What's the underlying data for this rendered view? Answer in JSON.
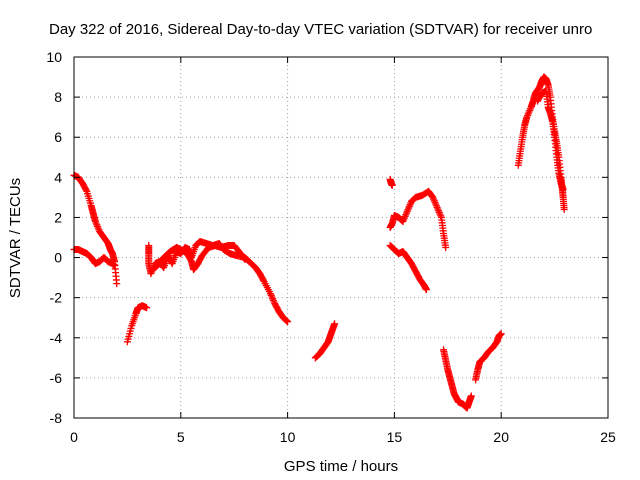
{
  "chart_data": {
    "type": "scatter",
    "title": "Day 322 of 2016, Sidereal Day-to-day VTEC variation (SDTVAR) for receiver unro",
    "xlabel": "GPS time / hours",
    "ylabel": "SDTVAR / TECUs",
    "xlim": [
      0,
      25
    ],
    "ylim": [
      -8,
      10
    ],
    "xticks": [
      0,
      5,
      10,
      15,
      20,
      25
    ],
    "yticks": [
      -8,
      -6,
      -4,
      -2,
      0,
      2,
      4,
      6,
      8,
      10
    ],
    "grid": true,
    "marker": "+",
    "color": "#ff0000",
    "series": [
      {
        "name": "SDTVAR",
        "segments": [
          [
            [
              0.0,
              4.1
            ],
            [
              0.2,
              4.0
            ],
            [
              0.4,
              3.7
            ],
            [
              0.6,
              3.3
            ],
            [
              0.8,
              2.6
            ],
            [
              0.9,
              2.2
            ],
            [
              1.0,
              1.8
            ],
            [
              1.2,
              1.3
            ],
            [
              1.4,
              1.0
            ],
            [
              1.6,
              0.7
            ],
            [
              1.7,
              0.4
            ],
            [
              1.8,
              0.2
            ],
            [
              1.9,
              -0.2
            ],
            [
              2.0,
              -1.3
            ]
          ],
          [
            [
              0.0,
              0.4
            ],
            [
              0.2,
              0.4
            ],
            [
              0.4,
              0.3
            ],
            [
              0.6,
              0.2
            ],
            [
              0.8,
              0.0
            ],
            [
              1.0,
              -0.3
            ],
            [
              1.2,
              -0.2
            ],
            [
              1.4,
              0.0
            ],
            [
              1.6,
              -0.2
            ],
            [
              1.8,
              -0.3
            ],
            [
              1.9,
              -0.4
            ]
          ],
          [
            [
              2.5,
              -4.2
            ],
            [
              2.7,
              -3.4
            ],
            [
              2.9,
              -2.8
            ],
            [
              3.0,
              -2.5
            ],
            [
              3.2,
              -2.4
            ],
            [
              3.4,
              -2.5
            ]
          ],
          [
            [
              3.5,
              0.6
            ],
            [
              3.5,
              0.2
            ],
            [
              3.5,
              -0.3
            ],
            [
              3.6,
              -0.8
            ],
            [
              3.8,
              -0.3
            ],
            [
              4.0,
              -0.2
            ],
            [
              4.2,
              -0.5
            ],
            [
              4.4,
              0.1
            ],
            [
              4.6,
              -0.3
            ],
            [
              4.8,
              0.3
            ],
            [
              5.0,
              0.2
            ],
            [
              5.2,
              0.5
            ],
            [
              5.4,
              0.4
            ],
            [
              5.5,
              0.0
            ],
            [
              5.7,
              0.6
            ],
            [
              5.9,
              0.8
            ],
            [
              6.2,
              0.7
            ],
            [
              6.5,
              0.6
            ],
            [
              6.8,
              0.7
            ],
            [
              7.0,
              0.4
            ],
            [
              7.3,
              0.2
            ],
            [
              7.6,
              0.1
            ],
            [
              8.0,
              0.0
            ],
            [
              8.2,
              -0.2
            ],
            [
              8.5,
              -0.5
            ],
            [
              8.7,
              -0.8
            ],
            [
              8.9,
              -1.2
            ],
            [
              9.2,
              -1.8
            ],
            [
              9.4,
              -2.3
            ],
            [
              9.6,
              -2.7
            ],
            [
              9.8,
              -3.0
            ],
            [
              10.0,
              -3.2
            ]
          ],
          [
            [
              3.8,
              -0.5
            ],
            [
              4.0,
              -0.3
            ],
            [
              4.2,
              0.0
            ],
            [
              4.5,
              0.3
            ],
            [
              4.8,
              0.5
            ],
            [
              5.0,
              0.4
            ],
            [
              5.3,
              0.2
            ],
            [
              5.5,
              -0.2
            ],
            [
              5.6,
              -0.6
            ],
            [
              5.8,
              -0.3
            ],
            [
              6.0,
              0.1
            ],
            [
              6.3,
              0.5
            ],
            [
              6.6,
              0.6
            ],
            [
              6.9,
              0.5
            ],
            [
              7.2,
              0.6
            ],
            [
              7.5,
              0.6
            ],
            [
              7.8,
              0.2
            ],
            [
              8.0,
              -0.1
            ]
          ],
          [
            [
              11.3,
              -5.0
            ],
            [
              11.5,
              -4.8
            ],
            [
              11.7,
              -4.5
            ],
            [
              11.9,
              -4.2
            ],
            [
              12.0,
              -3.9
            ],
            [
              12.1,
              -3.6
            ],
            [
              12.2,
              -3.3
            ]
          ],
          [
            [
              14.8,
              3.9
            ],
            [
              14.85,
              3.7
            ],
            [
              14.9,
              3.6
            ]
          ],
          [
            [
              14.8,
              1.5
            ],
            [
              14.9,
              1.7
            ],
            [
              15.0,
              2.1
            ],
            [
              15.2,
              2.0
            ],
            [
              15.4,
              1.8
            ],
            [
              15.6,
              2.3
            ],
            [
              15.8,
              2.8
            ],
            [
              16.0,
              3.0
            ],
            [
              16.3,
              3.1
            ],
            [
              16.6,
              3.3
            ],
            [
              16.8,
              3.0
            ],
            [
              17.0,
              2.5
            ],
            [
              17.2,
              2.0
            ],
            [
              17.3,
              1.2
            ],
            [
              17.4,
              0.5
            ]
          ],
          [
            [
              14.8,
              0.6
            ],
            [
              15.0,
              0.4
            ],
            [
              15.2,
              0.2
            ],
            [
              15.4,
              0.3
            ],
            [
              15.6,
              0.0
            ],
            [
              15.8,
              -0.3
            ],
            [
              16.0,
              -0.7
            ],
            [
              16.2,
              -1.1
            ],
            [
              16.4,
              -1.4
            ],
            [
              16.5,
              -1.6
            ]
          ],
          [
            [
              17.3,
              -4.6
            ],
            [
              17.4,
              -5.1
            ],
            [
              17.5,
              -5.6
            ],
            [
              17.6,
              -6.0
            ],
            [
              17.7,
              -6.4
            ],
            [
              17.8,
              -6.8
            ],
            [
              17.9,
              -7.0
            ],
            [
              18.0,
              -7.2
            ],
            [
              18.2,
              -7.3
            ],
            [
              18.3,
              -7.4
            ],
            [
              18.4,
              -7.5
            ],
            [
              18.5,
              -7.2
            ],
            [
              18.6,
              -6.9
            ]
          ],
          [
            [
              18.8,
              -6.1
            ],
            [
              18.9,
              -5.6
            ],
            [
              19.0,
              -5.2
            ],
            [
              19.2,
              -5.0
            ],
            [
              19.4,
              -4.7
            ],
            [
              19.6,
              -4.5
            ],
            [
              19.8,
              -4.2
            ],
            [
              19.9,
              -3.9
            ],
            [
              20.0,
              -3.8
            ]
          ],
          [
            [
              20.8,
              4.6
            ],
            [
              20.9,
              5.3
            ],
            [
              21.0,
              6.0
            ],
            [
              21.1,
              6.6
            ],
            [
              21.2,
              7.0
            ],
            [
              21.4,
              7.5
            ],
            [
              21.5,
              7.8
            ],
            [
              21.6,
              8.2
            ],
            [
              21.8,
              8.5
            ],
            [
              21.9,
              8.8
            ],
            [
              22.0,
              9.0
            ],
            [
              22.1,
              8.9
            ],
            [
              22.2,
              8.6
            ],
            [
              22.3,
              8.0
            ],
            [
              22.4,
              7.0
            ],
            [
              22.5,
              6.3
            ],
            [
              22.6,
              5.7
            ],
            [
              22.7,
              5.0
            ],
            [
              22.8,
              4.0
            ],
            [
              22.85,
              3.5
            ],
            [
              22.9,
              3.0
            ],
            [
              22.95,
              2.4
            ]
          ],
          [
            [
              21.7,
              7.8
            ],
            [
              21.9,
              8.2
            ],
            [
              22.1,
              8.3
            ],
            [
              22.2,
              7.5
            ],
            [
              22.3,
              7.2
            ],
            [
              22.4,
              6.8
            ],
            [
              22.5,
              6.0
            ],
            [
              22.6,
              5.0
            ],
            [
              22.7,
              4.2
            ],
            [
              22.8,
              3.7
            ],
            [
              22.9,
              3.4
            ]
          ]
        ]
      }
    ]
  }
}
